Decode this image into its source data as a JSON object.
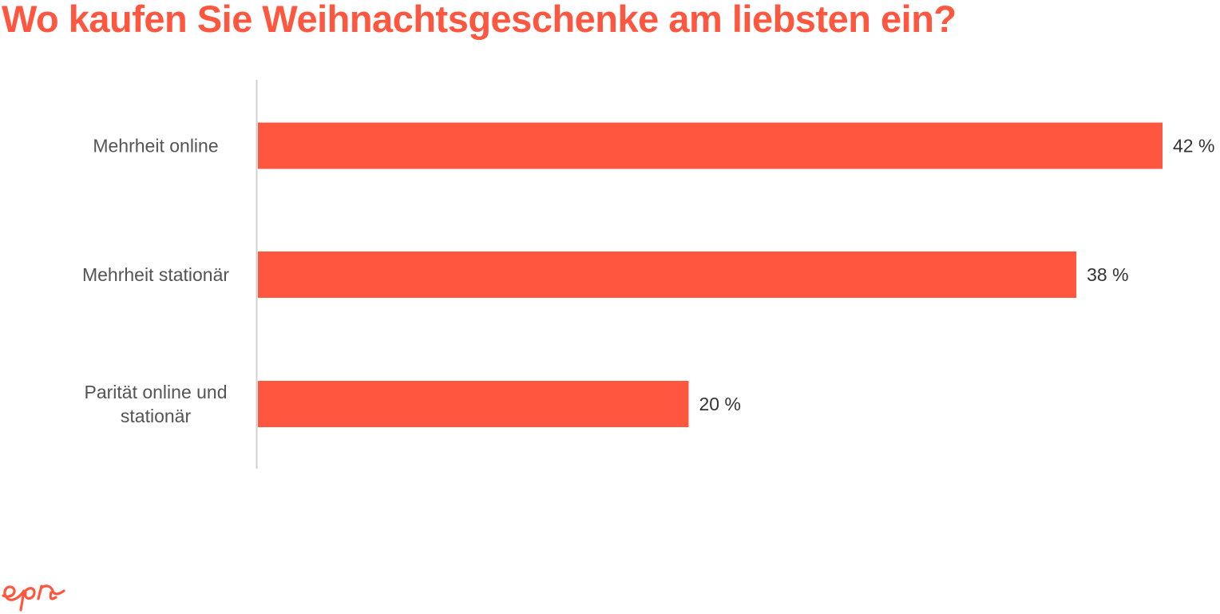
{
  "colors": {
    "accent": "#FF5640",
    "axis": "#d0d0d0",
    "label": "#545454",
    "value": "#333333"
  },
  "logo": {
    "icon": "epi-logo-icon",
    "text": "epi"
  },
  "chart_data": {
    "type": "bar",
    "orientation": "horizontal",
    "title": "Wo kaufen Sie Weihnachtsgeschenke am liebsten ein?",
    "categories": [
      [
        "Mehrheit online"
      ],
      [
        "Mehrheit stationär"
      ],
      [
        "Parität online und",
        "stationär"
      ]
    ],
    "values": [
      42,
      38,
      20
    ],
    "value_labels": [
      "42 %",
      "38 %",
      "20 %"
    ],
    "xlim": [
      0,
      42
    ],
    "grid": false,
    "legend": "none"
  }
}
